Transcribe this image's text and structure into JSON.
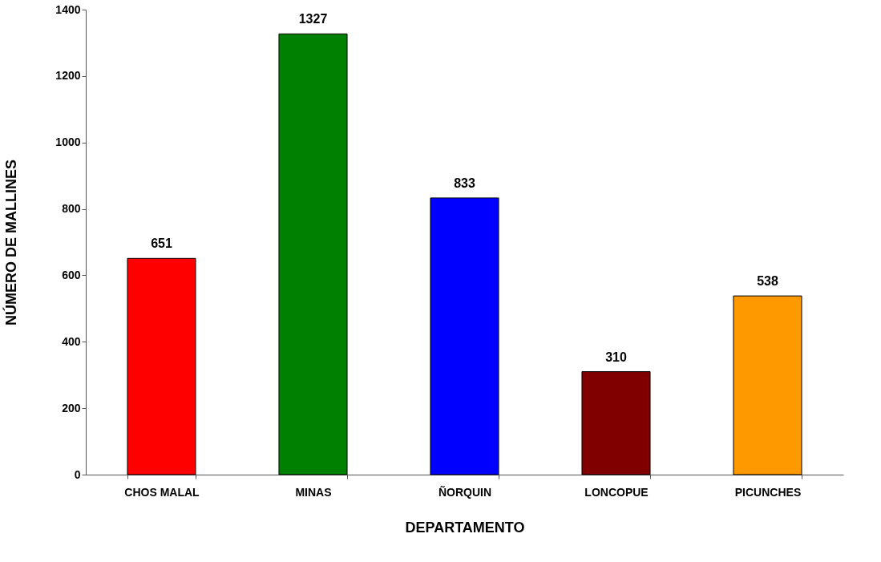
{
  "chart_data": {
    "type": "bar",
    "xlabel": "DEPARTAMENTO",
    "ylabel": "NÚMERO DE MALLINES",
    "categories": [
      "CHOS MALAL",
      "MINAS",
      "ÑORQUIN",
      "LONCOPUE",
      "PICUNCHES"
    ],
    "values": [
      651,
      1327,
      833,
      310,
      538
    ],
    "colors": [
      "#ff0000",
      "#008000",
      "#0000ff",
      "#800000",
      "#ff9900"
    ],
    "ylim": [
      0,
      1400
    ],
    "yticks": [
      0,
      200,
      400,
      600,
      800,
      1000,
      1200,
      1400
    ],
    "data_labels": true,
    "grid": false
  }
}
